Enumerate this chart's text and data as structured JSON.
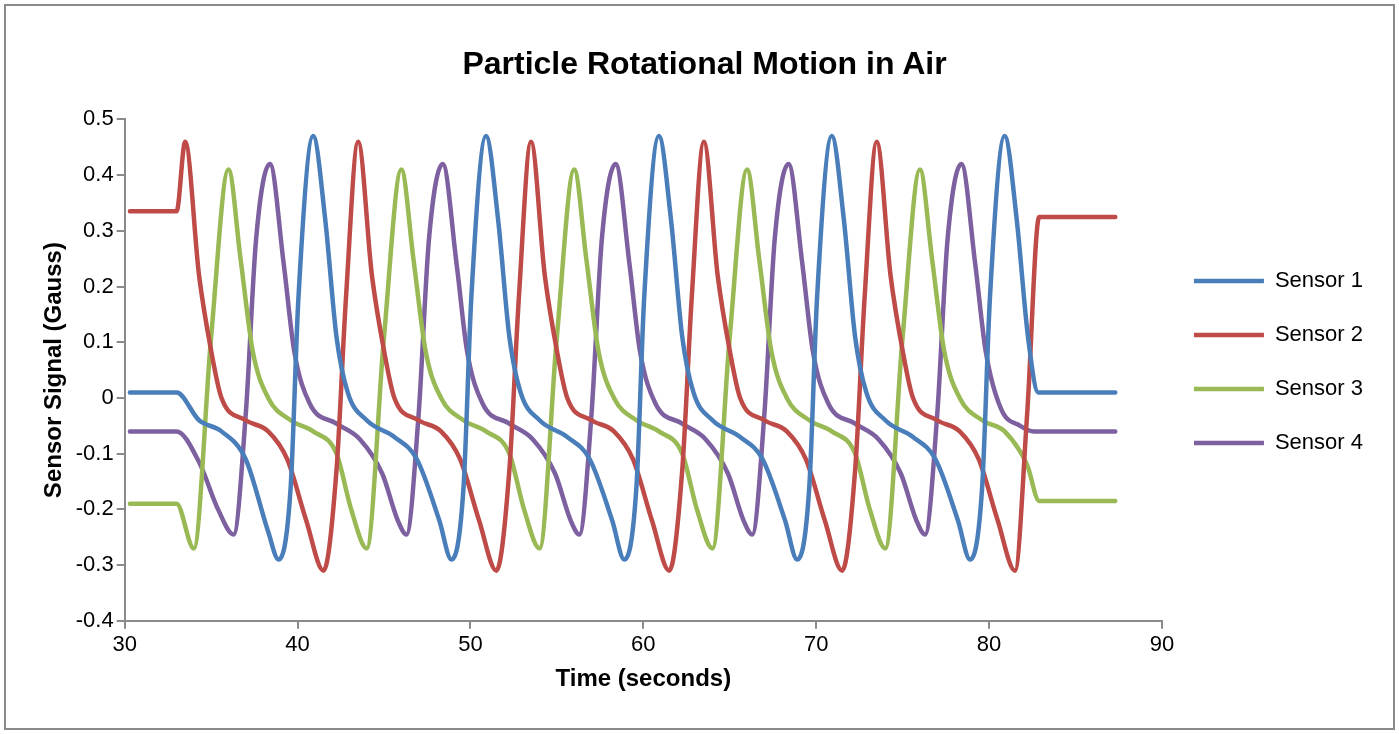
{
  "chart_data": {
    "type": "line",
    "title": "Particle Rotational Motion in Air",
    "xlabel": "Time (seconds)",
    "ylabel": "Sensor Signal (Gauss)",
    "xlim": [
      30,
      90
    ],
    "xticks": [
      30,
      40,
      50,
      60,
      70,
      80,
      90
    ],
    "ylim": [
      -0.4,
      0.5
    ],
    "yticks": [
      -0.4,
      -0.3,
      -0.2,
      -0.1,
      0,
      0.1,
      0.2,
      0.3,
      0.4,
      0.5
    ],
    "grid": false,
    "legend": "right",
    "marker": "none",
    "line_style": "solid",
    "series": [
      {
        "name": "Sensor 1",
        "color": "#4a7ebb",
        "x": [
          30.3,
          33.0,
          34.3,
          35.6,
          37.0,
          38.3,
          38.9,
          39.6,
          40.05,
          40.9,
          41.6,
          42.25,
          42.9,
          44.0,
          45.6,
          46.9,
          48.2,
          48.9,
          49.6,
          50.05,
          50.9,
          51.6,
          52.25,
          52.9,
          54.0,
          55.6,
          56.9,
          58.2,
          58.9,
          59.6,
          60.05,
          60.9,
          61.6,
          62.25,
          62.9,
          64.0,
          65.6,
          66.9,
          68.2,
          68.9,
          69.6,
          70.05,
          70.9,
          71.6,
          72.25,
          72.9,
          74.0,
          75.6,
          76.9,
          78.2,
          78.9,
          79.6,
          80.05,
          80.9,
          81.6,
          82.25,
          82.85,
          87.3
        ],
        "values": [
          0.01,
          0.01,
          -0.04,
          -0.06,
          -0.11,
          -0.24,
          -0.29,
          -0.16,
          0.18,
          0.47,
          0.32,
          0.11,
          0.01,
          -0.04,
          -0.07,
          -0.11,
          -0.22,
          -0.29,
          -0.16,
          0.18,
          0.47,
          0.32,
          0.11,
          0.01,
          -0.04,
          -0.07,
          -0.11,
          -0.22,
          -0.29,
          -0.16,
          0.18,
          0.47,
          0.32,
          0.11,
          0.01,
          -0.04,
          -0.07,
          -0.11,
          -0.22,
          -0.29,
          -0.16,
          0.18,
          0.47,
          0.32,
          0.11,
          0.01,
          -0.04,
          -0.07,
          -0.11,
          -0.22,
          -0.29,
          -0.16,
          0.18,
          0.47,
          0.32,
          0.11,
          0.01,
          0.01
        ]
      },
      {
        "name": "Sensor 2",
        "color": "#be4b48",
        "x": [
          30.3,
          33.0,
          33.5,
          34.3,
          35.0,
          35.6,
          37.0,
          38.3,
          39.4,
          40.5,
          41.5,
          42.25,
          42.8,
          43.5,
          44.3,
          45.0,
          45.6,
          47.0,
          48.3,
          49.4,
          50.5,
          51.5,
          52.25,
          52.8,
          53.5,
          54.3,
          55.0,
          55.6,
          57.0,
          58.3,
          59.4,
          60.5,
          61.5,
          62.25,
          62.8,
          63.5,
          64.3,
          65.0,
          65.6,
          67.0,
          68.3,
          69.4,
          70.5,
          71.5,
          72.25,
          72.8,
          73.5,
          74.3,
          75.0,
          75.6,
          77.0,
          78.3,
          79.4,
          80.5,
          81.5,
          82.2,
          82.9,
          87.3
        ],
        "values": [
          0.335,
          0.335,
          0.46,
          0.22,
          0.085,
          0,
          -0.04,
          -0.06,
          -0.11,
          -0.22,
          -0.31,
          -0.13,
          0.18,
          0.46,
          0.22,
          0.085,
          0,
          -0.04,
          -0.06,
          -0.11,
          -0.22,
          -0.31,
          -0.13,
          0.18,
          0.46,
          0.22,
          0.085,
          0,
          -0.04,
          -0.06,
          -0.11,
          -0.22,
          -0.31,
          -0.13,
          0.18,
          0.46,
          0.22,
          0.085,
          0,
          -0.04,
          -0.06,
          -0.11,
          -0.22,
          -0.31,
          -0.13,
          0.18,
          0.46,
          0.22,
          0.085,
          0,
          -0.04,
          -0.06,
          -0.11,
          -0.22,
          -0.31,
          -0.03,
          0.325,
          0.325
        ]
      },
      {
        "name": "Sensor 3",
        "color": "#98b954",
        "x": [
          30.3,
          33.0,
          34.0,
          35.0,
          36.0,
          36.7,
          37.4,
          38.3,
          39.6,
          40.9,
          42.25,
          43.1,
          44.0,
          45.0,
          46.0,
          46.7,
          47.4,
          48.3,
          49.6,
          50.9,
          52.25,
          53.1,
          54.0,
          55.0,
          56.0,
          56.7,
          57.4,
          58.3,
          59.6,
          60.9,
          62.25,
          63.1,
          64.0,
          65.0,
          66.0,
          66.7,
          67.4,
          68.3,
          69.6,
          70.9,
          72.25,
          73.1,
          74.0,
          75.0,
          76.0,
          76.7,
          77.4,
          78.3,
          79.6,
          80.9,
          82.2,
          82.9,
          87.3
        ],
        "values": [
          -0.19,
          -0.19,
          -0.27,
          0.11,
          0.41,
          0.25,
          0.085,
          0,
          -0.04,
          -0.06,
          -0.1,
          -0.2,
          -0.27,
          0.11,
          0.41,
          0.25,
          0.085,
          0,
          -0.04,
          -0.06,
          -0.1,
          -0.2,
          -0.27,
          0.11,
          0.41,
          0.25,
          0.085,
          0,
          -0.04,
          -0.06,
          -0.1,
          -0.2,
          -0.27,
          0.11,
          0.41,
          0.25,
          0.085,
          0,
          -0.04,
          -0.06,
          -0.1,
          -0.2,
          -0.27,
          0.11,
          0.41,
          0.25,
          0.085,
          0,
          -0.04,
          -0.06,
          -0.12,
          -0.185,
          -0.185
        ]
      },
      {
        "name": "Sensor 4",
        "color": "#7d60a0",
        "x": [
          30.3,
          33.0,
          34.3,
          35.4,
          36.3,
          37.0,
          37.6,
          38.4,
          39.2,
          39.8,
          40.7,
          42.25,
          43.6,
          44.9,
          45.8,
          46.3,
          47.0,
          47.6,
          48.4,
          49.2,
          49.8,
          50.7,
          52.25,
          53.6,
          54.9,
          55.8,
          56.3,
          57.0,
          57.6,
          58.4,
          59.2,
          59.8,
          60.7,
          62.25,
          63.6,
          64.9,
          65.8,
          66.3,
          67.0,
          67.6,
          68.4,
          69.2,
          69.8,
          70.7,
          72.25,
          73.6,
          74.9,
          75.8,
          76.3,
          77.0,
          77.6,
          78.4,
          79.2,
          79.8,
          80.7,
          81.8,
          82.6,
          87.3
        ],
        "values": [
          -0.06,
          -0.06,
          -0.115,
          -0.2,
          -0.245,
          -0.03,
          0.285,
          0.42,
          0.24,
          0.085,
          -0.01,
          -0.046,
          -0.074,
          -0.136,
          -0.22,
          -0.245,
          -0.03,
          0.285,
          0.42,
          0.24,
          0.085,
          -0.01,
          -0.046,
          -0.074,
          -0.136,
          -0.22,
          -0.245,
          -0.03,
          0.285,
          0.42,
          0.24,
          0.085,
          -0.01,
          -0.046,
          -0.074,
          -0.136,
          -0.22,
          -0.245,
          -0.03,
          0.285,
          0.42,
          0.24,
          0.085,
          -0.01,
          -0.046,
          -0.074,
          -0.136,
          -0.22,
          -0.245,
          -0.03,
          0.285,
          0.42,
          0.24,
          0.085,
          -0.02,
          -0.05,
          -0.06,
          -0.06
        ]
      }
    ]
  }
}
